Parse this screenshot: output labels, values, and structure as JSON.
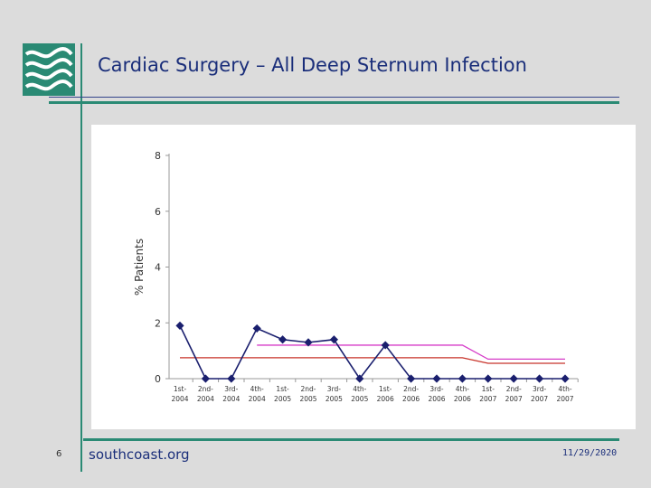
{
  "slide": {
    "title": "Cardiac Surgery – All Deep Sternum Infection",
    "number": "6",
    "footer": "southcoast.org",
    "date": "11/29/2020"
  },
  "colors": {
    "accent_green": "#2a8a74",
    "title_blue": "#1a2e7a",
    "series_navy": "#1a1f6e",
    "limit_magenta": "#d63cc8",
    "limit_red": "#c8332a"
  },
  "chart_data": {
    "type": "line",
    "title": "",
    "xlabel": "",
    "ylabel": "% Patients",
    "ylim": [
      0,
      8
    ],
    "yticks": [
      0,
      2,
      4,
      6,
      8
    ],
    "grid": false,
    "categories": [
      [
        "1st-",
        "2004"
      ],
      [
        "2nd-",
        "2004"
      ],
      [
        "3rd-",
        "2004"
      ],
      [
        "4th-",
        "2004"
      ],
      [
        "1st-",
        "2005"
      ],
      [
        "2nd-",
        "2005"
      ],
      [
        "3rd-",
        "2005"
      ],
      [
        "4th-",
        "2005"
      ],
      [
        "1st-",
        "2006"
      ],
      [
        "2nd-",
        "2006"
      ],
      [
        "3rd-",
        "2006"
      ],
      [
        "4th-",
        "2006"
      ],
      [
        "1st-",
        "2007"
      ],
      [
        "2nd-",
        "2007"
      ],
      [
        "3rd-",
        "2007"
      ],
      [
        "4th-",
        "2007"
      ]
    ],
    "series": [
      {
        "values": [
          1.9,
          0,
          0,
          1.8,
          1.4,
          1.3,
          1.4,
          0,
          1.2,
          0,
          0,
          0,
          0,
          0,
          0,
          0
        ],
        "color": "#1a1f6e",
        "marker": "diamond"
      },
      {
        "values": [
          null,
          null,
          null,
          1.2,
          1.2,
          1.2,
          1.2,
          1.2,
          1.2,
          1.2,
          1.2,
          1.2,
          0.7,
          0.7,
          0.7,
          0.7
        ],
        "color": "#d63cc8",
        "marker": "none"
      },
      {
        "values": [
          0.75,
          0.75,
          0.75,
          0.75,
          0.75,
          0.75,
          0.75,
          0.75,
          0.75,
          0.75,
          0.75,
          0.75,
          0.55,
          0.55,
          0.55,
          0.55
        ],
        "color": "#c8332a",
        "marker": "none"
      }
    ]
  }
}
